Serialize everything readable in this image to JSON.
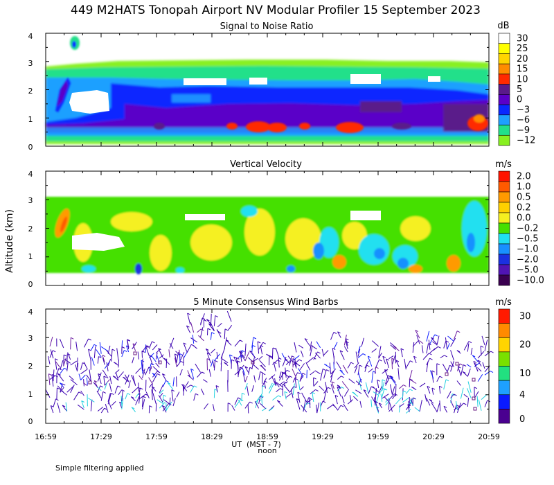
{
  "title": "449 M2HATS Tonopah Airport NV Modular Profiler 15 September 2023",
  "y_axis_label": "Altitude (km)",
  "x_axis": {
    "label": "UT  (MST - 7)",
    "noon_label": "noon",
    "ticks": [
      "16:59",
      "17:29",
      "17:59",
      "18:29",
      "18:59",
      "19:29",
      "19:59",
      "20:29",
      "20:59"
    ]
  },
  "footer_note": "Simple filtering applied",
  "chart_data": [
    {
      "type": "heatmap",
      "title": "Signal to Noise Ratio",
      "units": "dB",
      "xlabel": "UT (MST - 7)",
      "ylabel": "Altitude (km)",
      "ylim": [
        0,
        4
      ],
      "yticks": [
        "0",
        "1",
        "2",
        "3",
        "4"
      ],
      "colorbar": {
        "labels": [
          "30",
          "25",
          "20",
          "15",
          "10",
          "5",
          "0",
          "−3",
          "−6",
          "−9",
          "−12"
        ],
        "colors": [
          "#ffffff",
          "#ffff00",
          "#ffd500",
          "#ff8c00",
          "#ff2a00",
          "#5a1a8a",
          "#5a00c8",
          "#0a28ff",
          "#1ea0ff",
          "#22e08a",
          "#88f020"
        ]
      },
      "features": [
        {
          "level": "-9",
          "alt_range_km": [
            0.3,
            2.9
          ]
        },
        {
          "level": "-3",
          "alt_range_km": [
            1.7,
            2.3
          ]
        },
        {
          "level": "0",
          "alt_range_km": [
            0.6,
            1.2
          ]
        },
        {
          "level": "10",
          "alt_range_km": [
            0.55,
            0.9
          ]
        },
        {
          "level": "30",
          "alt_range_km": [
            1.3,
            1.8
          ]
        }
      ]
    },
    {
      "type": "heatmap",
      "title": "Vertical Velocity",
      "units": "m/s",
      "xlabel": "UT (MST - 7)",
      "ylabel": "Altitude (km)",
      "ylim": [
        0,
        4
      ],
      "yticks": [
        "0",
        "1",
        "2",
        "3",
        "4"
      ],
      "colorbar": {
        "labels": [
          "2.0",
          "1.0",
          "0.5",
          "0.2",
          "0.0",
          "−0.2",
          "−0.5",
          "−1.0",
          "−2.0",
          "−5.0",
          "−10.0"
        ],
        "colors": [
          "#ff1400",
          "#ff5a00",
          "#ff9a00",
          "#ffd000",
          "#f5f020",
          "#44e000",
          "#20e0f0",
          "#1890ff",
          "#1a30e0",
          "#5014b4",
          "#3a0050"
        ]
      },
      "features": [
        {
          "level": "-0.2",
          "alt_range_km": [
            0.5,
            2.9
          ]
        },
        {
          "level": "0.0",
          "alt_range_km": [
            0.6,
            2.8
          ]
        },
        {
          "level": "-0.5",
          "alt_range_km": [
            0.8,
            1.8
          ]
        }
      ]
    },
    {
      "type": "scatter",
      "title": "5 Minute Consensus Wind Barbs",
      "units": "m/s",
      "xlabel": "UT (MST - 7)",
      "ylabel": "Altitude (km)",
      "ylim": [
        0,
        4
      ],
      "yticks": [
        "0",
        "1",
        "2",
        "3",
        "4"
      ],
      "colorbar": {
        "labels": [
          "30",
          "20",
          "10",
          "4",
          "0"
        ],
        "colors": [
          "#ff1a00",
          "#ff8a00",
          "#ffd400",
          "#7ae000",
          "#22e080",
          "#1ea0ff",
          "#0a1aff",
          "#4a0090"
        ]
      }
    }
  ]
}
